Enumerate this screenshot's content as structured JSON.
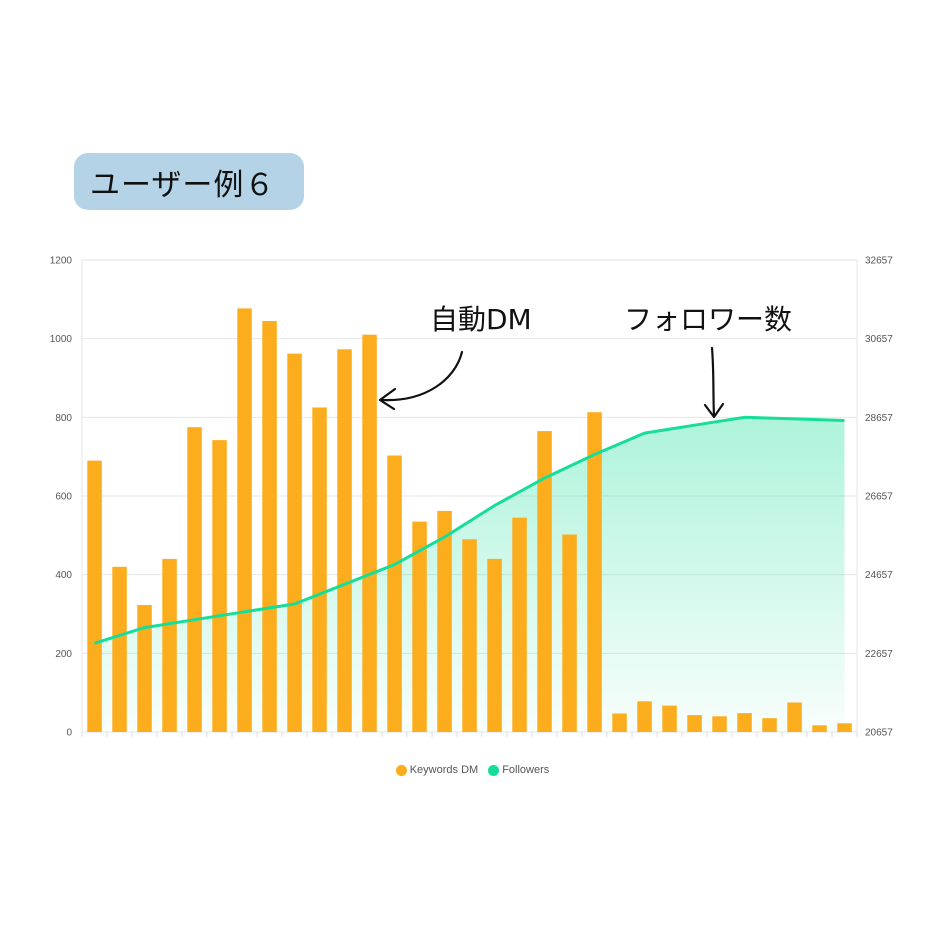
{
  "badge": {
    "title": "ユーザー例６"
  },
  "annotations": {
    "dm": "自動DM",
    "followers": "フォロワー数"
  },
  "colors": {
    "bar": "#fbad1d",
    "line": "#16dd98",
    "badge_bg": "#b5d3e6"
  },
  "chart_data": {
    "type": "bar",
    "left_axis": {
      "range": [
        0,
        1200
      ],
      "ticks": [
        "0",
        "200",
        "400",
        "600",
        "800",
        "1000",
        "1200"
      ]
    },
    "right_axis": {
      "range": [
        20657,
        32657
      ],
      "ticks": [
        "20657",
        "22657",
        "24657",
        "26657",
        "28657",
        "30657",
        "32657"
      ]
    },
    "grid": true,
    "legend_position": "bottom",
    "series": [
      {
        "name": "Keywords DM",
        "type": "bar",
        "axis": "left",
        "values": [
          690,
          420,
          323,
          440,
          775,
          742,
          1077,
          1045,
          962,
          825,
          973,
          1010,
          703,
          535,
          562,
          490,
          440,
          545,
          765,
          502,
          813,
          47,
          78,
          67,
          43,
          40,
          48,
          35,
          75,
          17,
          22
        ]
      },
      {
        "name": "Followers",
        "type": "area",
        "axis": "right",
        "values": [
          22912,
          23312,
          23512,
          23712,
          23912,
          24412,
          24912,
          25612,
          26412,
          27112,
          27712,
          28257,
          28457,
          28657,
          28617,
          28577
        ]
      }
    ]
  }
}
